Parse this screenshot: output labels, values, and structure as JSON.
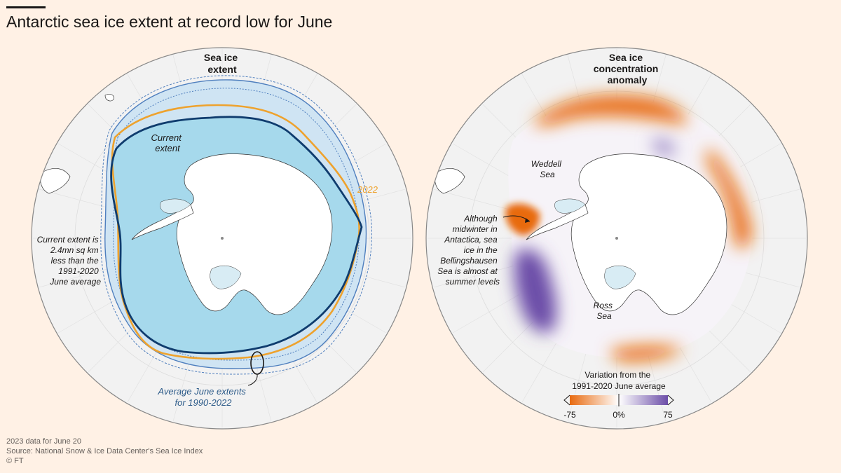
{
  "headline": "Antarctic sea ice extent at record low for June",
  "left_map": {
    "title_lines": [
      "Sea ice",
      "extent"
    ],
    "current_extent_label_lines": [
      "Current",
      "extent"
    ],
    "year_2022_label": "2022",
    "note_lines": [
      "Current extent is",
      "2.4mn sq km",
      "less than the",
      "1991-2020",
      "June average"
    ],
    "average_label_lines": [
      "Average June extents",
      "for 1990-2022"
    ],
    "current_extent_shortfall_mn_sq_km": 2.4
  },
  "right_map": {
    "title_lines": [
      "Sea ice",
      "concentration",
      "anomaly"
    ],
    "weddell_label_lines": [
      "Weddell",
      "Sea"
    ],
    "ross_label_lines": [
      "Ross",
      "Sea"
    ],
    "bellingshausen_note_lines": [
      "Although",
      "midwinter in",
      "Antactica, sea",
      "ice in the",
      "Bellingshausen",
      "Sea is almost at",
      "summer levels"
    ],
    "legend": {
      "title_lines": [
        "Variation from the",
        "1991-2020 June average"
      ],
      "ticks": [
        "-75",
        "0%",
        "75"
      ],
      "min": -75,
      "max": 75
    }
  },
  "colors": {
    "background": "#fff1e5",
    "globe": "#f2f2f2",
    "sea_ice": "#a6d9ec",
    "current_extent_line": "#0f3c6e",
    "line_2022": "#eea22d",
    "historical_lines": "#4f7fbe",
    "negative_anomaly": "#e86a10",
    "positive_anomaly": "#6c4ea8",
    "land": "#ffffff"
  },
  "footer": {
    "date_note": "2023 data for June 20",
    "source": "Source: National Snow & Ice Data Center's Sea Ice Index",
    "credit": "© FT"
  }
}
